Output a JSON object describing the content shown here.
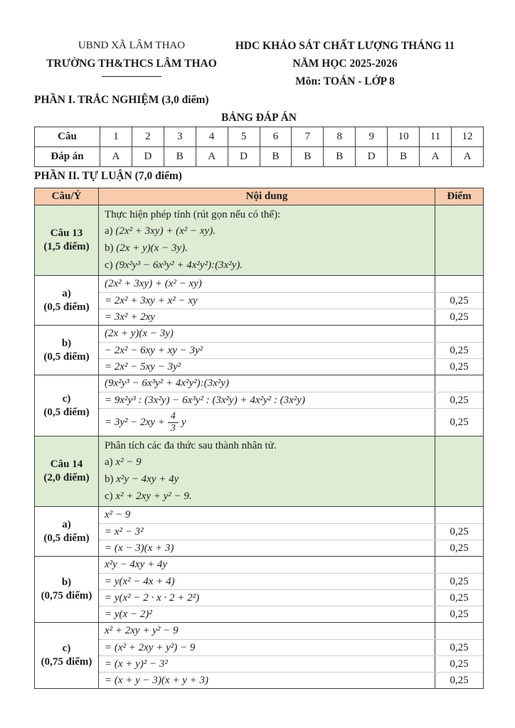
{
  "colors": {
    "header_row_bg": "#f7cbac",
    "question_row_bg": "#ddecd3"
  },
  "header": {
    "left_lines": [
      "UBND XÃ LÂM THAO",
      "TRƯỜNG TH&THCS LÂM THAO"
    ],
    "right_lines": [
      "HDC KHẢO SÁT CHẤT LƯỢNG THÁNG 11",
      "NĂM HỌC 2025-2026",
      "Môn: TOÁN - LỚP 8"
    ]
  },
  "part1": {
    "title": "PHẦN I. TRẮC NGHIỆM (3,0 điểm)",
    "answer_table_title": "BẢNG ĐÁP ÁN",
    "answer_table": {
      "question_label": "Câu",
      "answer_label": "Đáp án",
      "questions": [
        "1",
        "2",
        "3",
        "4",
        "5",
        "6",
        "7",
        "8",
        "9",
        "10",
        "11",
        "12"
      ],
      "answers": [
        "A",
        "D",
        "B",
        "A",
        "D",
        "B",
        "B",
        "B",
        "D",
        "B",
        "A",
        "A"
      ]
    }
  },
  "part2": {
    "title": "PHẦN II. TỰ LUẬN (7,0 điểm)",
    "solution_table": {
      "headers": [
        "Câu/Ý",
        "Nội dung",
        "Điểm"
      ],
      "blocks": [
        {
          "kind": "question",
          "label": [
            "Câu 13",
            "(1,5 điểm)"
          ],
          "lines": [
            {
              "text": "Thực hiện phép tính (rút gọn nếu có thể):"
            },
            {
              "label": "a)",
              "math": "(2x² + 3xy) + (x² − xy)."
            },
            {
              "label": "b)",
              "math": "(2x + y)(x − 3y)."
            },
            {
              "label": "c)",
              "math": "(9x²y³ − 6x³y² + 4x²y²):(3x²y)."
            }
          ]
        },
        {
          "kind": "answer",
          "label": [
            "a)",
            "(0,5 điểm)"
          ],
          "rows": [
            {
              "math": "(2x² + 3xy) + (x² − xy)",
              "point": ""
            },
            {
              "math": "= 2x² + 3xy + x² − xy",
              "point": "0,25"
            },
            {
              "math": "= 3x² + 2xy",
              "point": "0,25"
            }
          ]
        },
        {
          "kind": "answer",
          "label": [
            "b)",
            "(0,5 điểm)"
          ],
          "rows": [
            {
              "math": "(2x + y)(x − 3y)",
              "point": ""
            },
            {
              "math": "− 2x² − 6xy + xy − 3y²",
              "point": "0,25"
            },
            {
              "math": "= 2x² − 5xy − 3y²",
              "point": "0,25"
            }
          ]
        },
        {
          "kind": "answer",
          "label": [
            "c)",
            "(0,5 điểm)"
          ],
          "rows": [
            {
              "math": "(9x²y³ − 6x³y² + 4x²y²):(3x²y)",
              "point": ""
            },
            {
              "math": "= 9x²y³ : (3x²y) − 6x³y² : (3x²y) + 4x²y² : (3x²y)",
              "point": "0,25"
            },
            {
              "math": "= 3y² − 2xy +",
              "frac": {
                "num": "4",
                "den": "3"
              },
              "math_after": "y",
              "point": "0,25"
            }
          ]
        },
        {
          "kind": "question",
          "label": [
            "Câu 14",
            "(2,0 điểm)"
          ],
          "lines": [
            {
              "text": "Phân tích các đa thức sau thành nhân tử."
            },
            {
              "label": "a)",
              "math": "x² − 9"
            },
            {
              "label": "b)",
              "math": "x²y − 4xy + 4y"
            },
            {
              "label": "c)",
              "math": "x² + 2xy + y² − 9."
            }
          ]
        },
        {
          "kind": "answer",
          "label": [
            "a)",
            "(0,5 điểm)"
          ],
          "rows": [
            {
              "math": "x² − 9",
              "point": ""
            },
            {
              "math": "= x² − 3²",
              "point": "0,25"
            },
            {
              "math": "= (x − 3)(x + 3)",
              "point": "0,25"
            }
          ]
        },
        {
          "kind": "answer",
          "label": [
            "b)",
            "(0,75 điểm)"
          ],
          "rows": [
            {
              "math": "x²y − 4xy + 4y",
              "point": ""
            },
            {
              "math": "= y(x² − 4x + 4)",
              "point": "0,25"
            },
            {
              "math": "= y(x² − 2 · x · 2 + 2²)",
              "point": "0,25"
            },
            {
              "math": "= y(x − 2)²",
              "point": "0,25"
            }
          ]
        },
        {
          "kind": "answer",
          "label": [
            "c)",
            "(0,75 điểm)"
          ],
          "rows": [
            {
              "math": "x² + 2xy + y² − 9",
              "point": ""
            },
            {
              "math": "= (x² + 2xy + y²) − 9",
              "point": "0,25"
            },
            {
              "math": "= (x + y)² − 3²",
              "point": "0,25"
            },
            {
              "math": "= (x + y − 3)(x + y + 3)",
              "point": "0,25"
            }
          ]
        }
      ]
    }
  }
}
